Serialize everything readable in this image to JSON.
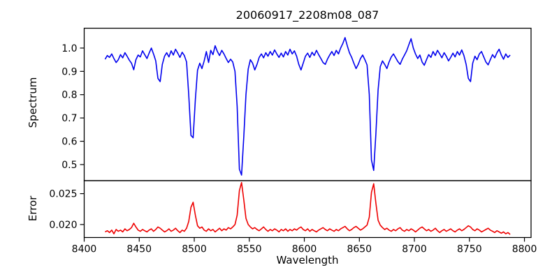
{
  "figure": {
    "title": "20060917_2208m08_087",
    "xlabel": "Wavelength",
    "ylabel_top": "Spectrum",
    "ylabel_bottom": "Error",
    "background_color": "#ffffff",
    "frame_color": "#000000"
  },
  "chart_data": [
    {
      "type": "line",
      "panel": "top",
      "title": "20060917_2208m08_087",
      "xlabel": "",
      "ylabel": "Spectrum",
      "grid": false,
      "legend": "none",
      "xlim": [
        8400,
        8806
      ],
      "ylim": [
        0.431,
        1.085
      ],
      "yticks": [
        0.5,
        0.6,
        0.7,
        0.8,
        0.9,
        1.0
      ],
      "ytick_decimals": 1,
      "xticks": [
        8400,
        8450,
        8500,
        8550,
        8600,
        8650,
        8700,
        8750,
        8800
      ],
      "show_xtick_labels": false,
      "series": [
        {
          "name": "spectrum",
          "color": "#0000ee",
          "x_start": 8419,
          "x_step": 2,
          "values": [
            0.952,
            0.968,
            0.96,
            0.975,
            0.955,
            0.938,
            0.95,
            0.972,
            0.958,
            0.98,
            0.965,
            0.948,
            0.935,
            0.907,
            0.95,
            0.97,
            0.962,
            0.988,
            0.972,
            0.955,
            0.978,
            1.0,
            0.975,
            0.945,
            0.87,
            0.856,
            0.93,
            0.965,
            0.98,
            0.962,
            0.988,
            0.97,
            0.995,
            0.978,
            0.96,
            0.982,
            0.968,
            0.94,
            0.8,
            0.625,
            0.615,
            0.78,
            0.905,
            0.935,
            0.912,
            0.945,
            0.985,
            0.938,
            0.99,
            0.972,
            1.01,
            0.985,
            0.968,
            0.99,
            0.975,
            0.955,
            0.938,
            0.952,
            0.94,
            0.9,
            0.75,
            0.48,
            0.455,
            0.62,
            0.8,
            0.91,
            0.95,
            0.935,
            0.906,
            0.93,
            0.96,
            0.975,
            0.958,
            0.98,
            0.965,
            0.985,
            0.97,
            0.992,
            0.975,
            0.96,
            0.978,
            0.962,
            0.985,
            0.97,
            0.995,
            0.975,
            0.988,
            0.965,
            0.93,
            0.906,
            0.935,
            0.965,
            0.978,
            0.96,
            0.982,
            0.968,
            0.99,
            0.972,
            0.955,
            0.938,
            0.93,
            0.952,
            0.97,
            0.985,
            0.968,
            0.99,
            0.975,
            1.0,
            1.02,
            1.045,
            1.01,
            0.98,
            0.96,
            0.935,
            0.912,
            0.93,
            0.955,
            0.97,
            0.95,
            0.928,
            0.8,
            0.52,
            0.475,
            0.63,
            0.82,
            0.92,
            0.945,
            0.93,
            0.912,
            0.94,
            0.962,
            0.975,
            0.958,
            0.942,
            0.93,
            0.952,
            0.97,
            0.988,
            1.015,
            1.04,
            1.0,
            0.975,
            0.955,
            0.97,
            0.94,
            0.926,
            0.95,
            0.972,
            0.96,
            0.985,
            0.968,
            0.99,
            0.975,
            0.958,
            0.98,
            0.965,
            0.945,
            0.96,
            0.978,
            0.962,
            0.985,
            0.97,
            0.992,
            0.968,
            0.93,
            0.87,
            0.856,
            0.935,
            0.965,
            0.95,
            0.975,
            0.985,
            0.962,
            0.94,
            0.928,
            0.95,
            0.972,
            0.958,
            0.98,
            0.995,
            0.97,
            0.952,
            0.975,
            0.96,
            0.97
          ]
        }
      ]
    },
    {
      "type": "line",
      "panel": "bottom",
      "title": "",
      "xlabel": "Wavelength",
      "ylabel": "Error",
      "grid": false,
      "legend": "none",
      "xlim": [
        8400,
        8806
      ],
      "ylim": [
        0.0179,
        0.0271
      ],
      "yticks": [
        0.02,
        0.025
      ],
      "ytick_decimals": 3,
      "xticks": [
        8400,
        8450,
        8500,
        8550,
        8600,
        8650,
        8700,
        8750,
        8800
      ],
      "show_xtick_labels": true,
      "series": [
        {
          "name": "error",
          "color": "#ee0000",
          "x_start": 8419,
          "x_step": 2,
          "values": [
            0.0188,
            0.019,
            0.0187,
            0.0191,
            0.0185,
            0.0192,
            0.0189,
            0.0191,
            0.0188,
            0.0193,
            0.019,
            0.0192,
            0.0195,
            0.0202,
            0.0196,
            0.0191,
            0.0189,
            0.0192,
            0.019,
            0.0188,
            0.0191,
            0.0193,
            0.0189,
            0.0192,
            0.0196,
            0.0194,
            0.0191,
            0.0188,
            0.019,
            0.0193,
            0.0189,
            0.0191,
            0.0194,
            0.019,
            0.0187,
            0.0191,
            0.0189,
            0.0194,
            0.0205,
            0.0228,
            0.0236,
            0.0215,
            0.0198,
            0.0194,
            0.0196,
            0.0191,
            0.0189,
            0.0193,
            0.019,
            0.0192,
            0.0188,
            0.0191,
            0.0194,
            0.019,
            0.0193,
            0.0191,
            0.0195,
            0.0193,
            0.0196,
            0.02,
            0.0215,
            0.0255,
            0.0268,
            0.024,
            0.021,
            0.02,
            0.0196,
            0.0193,
            0.0195,
            0.0192,
            0.019,
            0.0193,
            0.0196,
            0.0192,
            0.0189,
            0.0192,
            0.019,
            0.0193,
            0.0191,
            0.0188,
            0.0192,
            0.019,
            0.0193,
            0.0189,
            0.0192,
            0.019,
            0.0193,
            0.0191,
            0.0194,
            0.0196,
            0.0192,
            0.019,
            0.0193,
            0.0189,
            0.0192,
            0.019,
            0.0188,
            0.0191,
            0.0193,
            0.0195,
            0.0192,
            0.019,
            0.0193,
            0.0191,
            0.0189,
            0.0192,
            0.019,
            0.0193,
            0.0195,
            0.0197,
            0.0193,
            0.019,
            0.0192,
            0.0195,
            0.0197,
            0.0194,
            0.0191,
            0.0193,
            0.0196,
            0.0199,
            0.0212,
            0.0252,
            0.0266,
            0.0235,
            0.0207,
            0.0199,
            0.0195,
            0.0192,
            0.0194,
            0.0191,
            0.0189,
            0.0192,
            0.019,
            0.0193,
            0.0195,
            0.0191,
            0.0189,
            0.0192,
            0.019,
            0.0193,
            0.0191,
            0.0188,
            0.0191,
            0.0194,
            0.0196,
            0.0193,
            0.019,
            0.0192,
            0.0189,
            0.0191,
            0.0194,
            0.019,
            0.0187,
            0.019,
            0.0192,
            0.0189,
            0.0191,
            0.0193,
            0.019,
            0.0188,
            0.0191,
            0.0193,
            0.019,
            0.0192,
            0.0195,
            0.0198,
            0.0196,
            0.0192,
            0.019,
            0.0193,
            0.0191,
            0.0188,
            0.019,
            0.0192,
            0.0194,
            0.0191,
            0.0189,
            0.0187,
            0.019,
            0.0188,
            0.0186,
            0.0188,
            0.0185,
            0.0187,
            0.0184
          ]
        }
      ]
    }
  ]
}
